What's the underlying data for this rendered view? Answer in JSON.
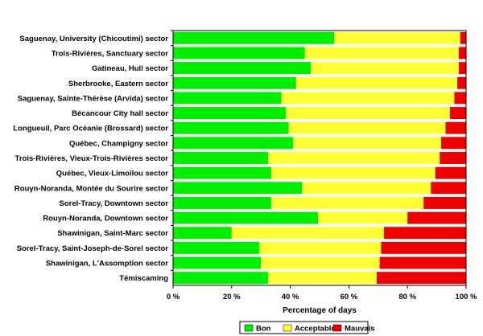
{
  "chart_data": {
    "type": "bar",
    "orientation": "horizontal",
    "stacked": true,
    "categories": [
      "Saguenay, University (Chicoutimi) sector",
      "Trois-Rivières, Sanctuary sector",
      "Gatineau, Hull sector",
      "Sherbrooke, Eastern sector",
      "Saguenay, Sainte-Thérèse (Arvida) sector",
      "Bécancour City hall sector",
      "Longueuil, Parc Océanie (Brossard) sector",
      "Québec, Champigny sector",
      "Trois-Rivières, Vieux-Trois-Rivières sector",
      "Québec, Vieux-Limoilou sector",
      "Rouyn-Noranda, Montée du Sourire sector",
      "Sorel-Tracy,  Downtown sector",
      "Rouyn-Noranda,  Downtown sector",
      "Shawinigan, Saint-Marc sector",
      "Sorel-Tracy, Saint-Joseph-de-Sorel sector",
      "Shawinigan, L'Assomption sector",
      "Témiscaming"
    ],
    "series": [
      {
        "name": "Bon",
        "color": "#00ee00",
        "values": [
          55,
          45,
          47,
          42,
          37,
          38.5,
          39.5,
          41,
          32.5,
          33.5,
          44,
          33.5,
          49.5,
          20,
          29.5,
          30,
          32.5
        ]
      },
      {
        "name": "Acceptable",
        "color": "#ffff33",
        "values": [
          43,
          52.5,
          50.5,
          55,
          59,
          56,
          53.5,
          50.5,
          58.5,
          56,
          44,
          52,
          30.5,
          52,
          41.5,
          40.5,
          37
        ]
      },
      {
        "name": "Mauvais",
        "color": "#ee0000",
        "values": [
          2,
          2.5,
          2.5,
          3,
          4,
          5.5,
          7,
          8.5,
          9,
          10.5,
          12,
          14.5,
          20,
          28,
          29,
          29.5,
          30.5
        ]
      }
    ],
    "xlabel": "Percentage of days",
    "xlim": [
      0,
      100
    ],
    "xticks": [
      0,
      20,
      40,
      60,
      80,
      100
    ],
    "xtick_labels": [
      "0 %",
      "20 %",
      "40 %",
      "60 %",
      "80 %",
      "100 %"
    ],
    "grid": false,
    "legend_position": "bottom"
  }
}
